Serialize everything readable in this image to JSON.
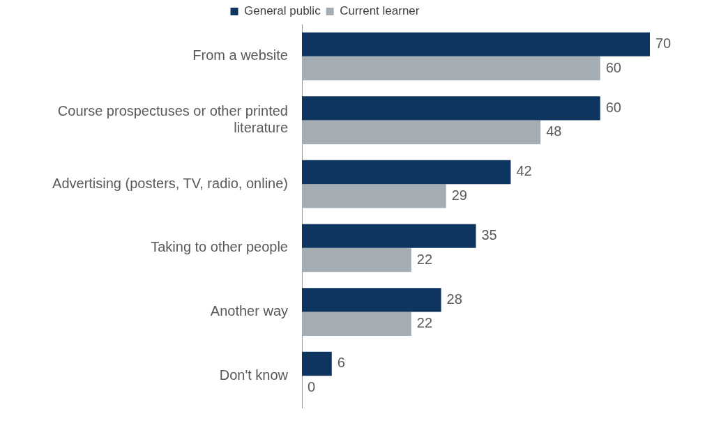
{
  "chart_data": {
    "type": "bar",
    "orientation": "horizontal",
    "categories": [
      "From a website",
      "Course prospectuses or other printed literature",
      "Advertising (posters, TV, radio, online)",
      "Taking to other people",
      "Another way",
      "Don't know"
    ],
    "series": [
      {
        "name": "General public",
        "color": "#0e3460",
        "values": [
          70,
          60,
          42,
          35,
          28,
          6
        ]
      },
      {
        "name": "Current learner",
        "color": "#a5adb4",
        "values": [
          60,
          48,
          29,
          22,
          22,
          0
        ]
      }
    ],
    "data_labels": true,
    "legend": "top",
    "grid": false
  }
}
